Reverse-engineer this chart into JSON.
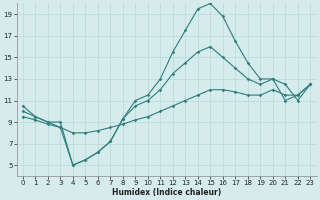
{
  "xlabel": "Humidex (Indice chaleur)",
  "xlim": [
    -0.5,
    23.5
  ],
  "ylim": [
    4,
    20
  ],
  "xticks": [
    0,
    1,
    2,
    3,
    4,
    5,
    6,
    7,
    8,
    9,
    10,
    11,
    12,
    13,
    14,
    15,
    16,
    17,
    18,
    19,
    20,
    21,
    22,
    23
  ],
  "yticks": [
    5,
    7,
    9,
    11,
    13,
    15,
    17,
    19
  ],
  "bg_color": "#d6ecec",
  "grid_color": "#b0d4d4",
  "line_color": "#2e7d7d",
  "line1_x": [
    0,
    1,
    2,
    3,
    4,
    5,
    6,
    7,
    8,
    9,
    10,
    11,
    12,
    13,
    14,
    15,
    16,
    17,
    18,
    19,
    20,
    21,
    22,
    23
  ],
  "line1_y": [
    10.5,
    9.5,
    9.0,
    8.5,
    5.0,
    5.5,
    6.2,
    7.2,
    9.3,
    11.0,
    11.5,
    13.0,
    15.5,
    17.5,
    19.5,
    20.0,
    18.8,
    16.5,
    14.5,
    13.0,
    13.0,
    11.0,
    11.5,
    12.5
  ],
  "line2_x": [
    0,
    1,
    2,
    3,
    4,
    5,
    6,
    7,
    8,
    9,
    10,
    11,
    12,
    13,
    14,
    15,
    16,
    17,
    18,
    19,
    20,
    21,
    22,
    23
  ],
  "line2_y": [
    10.0,
    9.5,
    9.0,
    9.0,
    5.0,
    5.5,
    6.2,
    7.2,
    9.3,
    10.5,
    11.0,
    12.0,
    13.5,
    14.5,
    15.5,
    16.0,
    15.0,
    14.0,
    13.0,
    12.5,
    13.0,
    12.5,
    11.0,
    12.5
  ],
  "line3_x": [
    0,
    1,
    2,
    3,
    4,
    5,
    6,
    7,
    8,
    9,
    10,
    11,
    12,
    13,
    14,
    15,
    16,
    17,
    18,
    19,
    20,
    21,
    22,
    23
  ],
  "line3_y": [
    9.5,
    9.2,
    8.8,
    8.5,
    8.0,
    8.0,
    8.2,
    8.5,
    8.8,
    9.2,
    9.5,
    10.0,
    10.5,
    11.0,
    11.5,
    12.0,
    12.0,
    11.8,
    11.5,
    11.5,
    12.0,
    11.5,
    11.5,
    12.5
  ],
  "marker": "D",
  "markersize": 1.8,
  "linewidth": 0.8,
  "tick_fontsize": 5,
  "xlabel_fontsize": 5.5
}
